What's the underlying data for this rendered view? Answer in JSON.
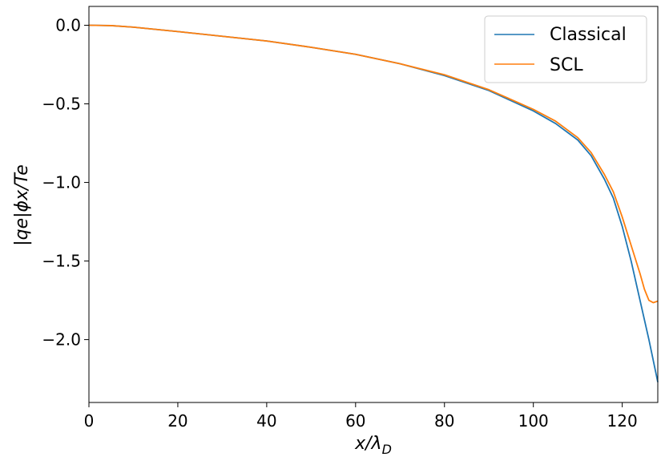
{
  "chart_data": {
    "type": "line",
    "xlabel_main": "x/λ",
    "xlabel_sub": "D",
    "ylabel": "|qe|ϕx/Te",
    "xlim": [
      0,
      128
    ],
    "ylim": [
      -2.4,
      0.12
    ],
    "x_ticks": [
      0,
      20,
      40,
      60,
      80,
      100,
      120
    ],
    "x_tick_labels": [
      "0",
      "20",
      "40",
      "60",
      "80",
      "100",
      "120"
    ],
    "y_ticks": [
      0.0,
      -0.5,
      -1.0,
      -1.5,
      -2.0
    ],
    "y_tick_labels": [
      "0.0",
      "−0.5",
      "−1.0",
      "−1.5",
      "−2.0"
    ],
    "legend_position": "top-right",
    "grid": false,
    "series": [
      {
        "name": "Classical",
        "color": "#1f77b4",
        "x": [
          0,
          5,
          10,
          20,
          30,
          40,
          50,
          60,
          70,
          80,
          90,
          100,
          105,
          110,
          113,
          116,
          118,
          120,
          122,
          124,
          126,
          128
        ],
        "y": [
          0.0,
          -0.002,
          -0.012,
          -0.04,
          -0.07,
          -0.1,
          -0.14,
          -0.185,
          -0.245,
          -0.32,
          -0.415,
          -0.545,
          -0.625,
          -0.73,
          -0.83,
          -0.98,
          -1.1,
          -1.28,
          -1.5,
          -1.75,
          -2.0,
          -2.27
        ]
      },
      {
        "name": "SCL",
        "color": "#ff7f0e",
        "x": [
          0,
          5,
          10,
          20,
          30,
          40,
          50,
          60,
          70,
          80,
          90,
          100,
          105,
          110,
          113,
          116,
          118,
          120,
          122,
          124,
          125,
          126,
          127,
          128
        ],
        "y": [
          0.0,
          -0.002,
          -0.012,
          -0.04,
          -0.07,
          -0.1,
          -0.14,
          -0.185,
          -0.245,
          -0.315,
          -0.41,
          -0.535,
          -0.61,
          -0.715,
          -0.81,
          -0.95,
          -1.06,
          -1.22,
          -1.4,
          -1.58,
          -1.68,
          -1.75,
          -1.765,
          -1.755
        ]
      }
    ]
  }
}
